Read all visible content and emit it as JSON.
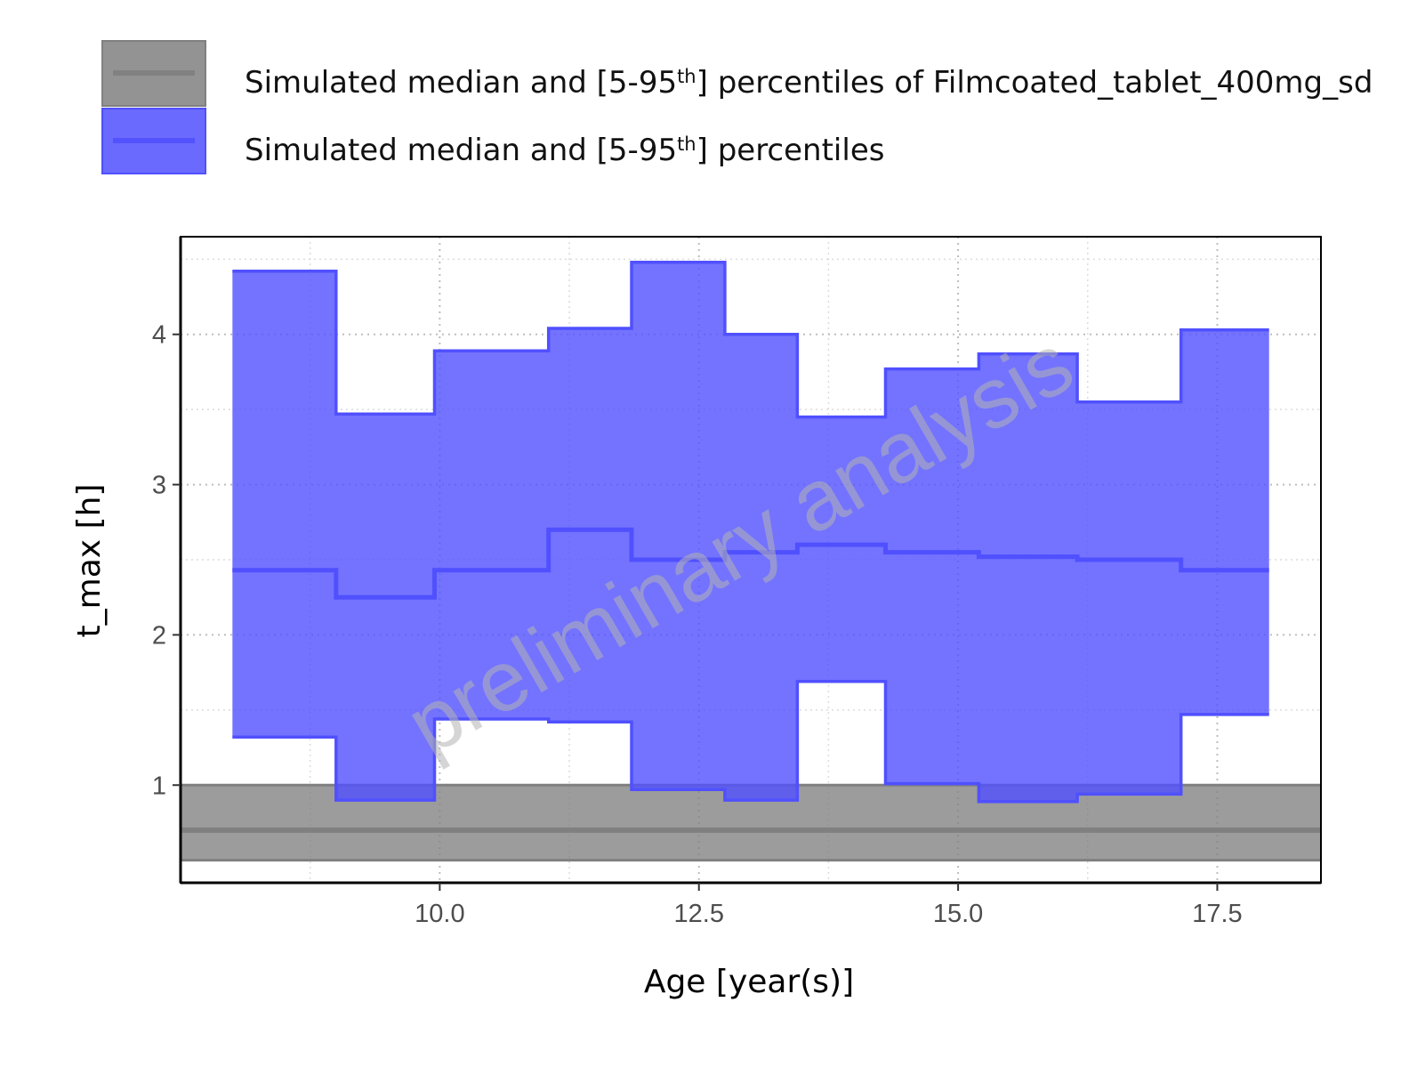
{
  "chart_data": {
    "type": "area",
    "watermark": "preliminary analysis",
    "xlabel": "Age [year(s)]",
    "ylabel": "t_max [h]",
    "xlim": [
      7.5,
      18.5
    ],
    "ylim": [
      0.35,
      4.65
    ],
    "x_ticks": [
      10.0,
      12.5,
      15.0,
      17.5
    ],
    "x_tick_labels": [
      "10.0",
      "12.5",
      "15.0",
      "17.5"
    ],
    "y_ticks": [
      1,
      2,
      3,
      4
    ],
    "y_tick_labels": [
      "1",
      "2",
      "3",
      "4"
    ],
    "grid": true,
    "legend_position": "top-left",
    "legend": [
      {
        "label_pre": "Simulated median and [5-95",
        "label_sup": "th",
        "label_post": "] percentiles of Filmcoated_tablet_400mg_sd",
        "color": "#808080"
      },
      {
        "label_pre": "Simulated median and [5-95",
        "label_sup": "th",
        "label_post": "] percentiles",
        "color": "#5050ff"
      }
    ],
    "series": [
      {
        "color": "#808080",
        "x": [
          7.5,
          18.5
        ],
        "median": [
          0.7,
          0.7
        ],
        "lower": [
          0.5,
          0.5
        ],
        "upper": [
          1.0,
          1.0
        ]
      },
      {
        "color": "#5050ff",
        "step_edges": [
          8.0,
          9.0,
          9.95,
          11.05,
          11.85,
          12.75,
          13.45,
          14.3,
          15.2,
          16.15,
          17.15,
          18.0
        ],
        "median": [
          2.43,
          2.25,
          2.43,
          2.7,
          2.5,
          2.55,
          2.6,
          2.55,
          2.52,
          2.5,
          2.43
        ],
        "lower": [
          1.32,
          0.9,
          1.44,
          1.42,
          0.97,
          0.9,
          1.69,
          1.01,
          0.89,
          0.94,
          1.47
        ],
        "upper": [
          4.42,
          3.47,
          3.89,
          4.04,
          4.48,
          4.0,
          3.45,
          3.77,
          3.87,
          3.55,
          4.03
        ]
      }
    ]
  }
}
